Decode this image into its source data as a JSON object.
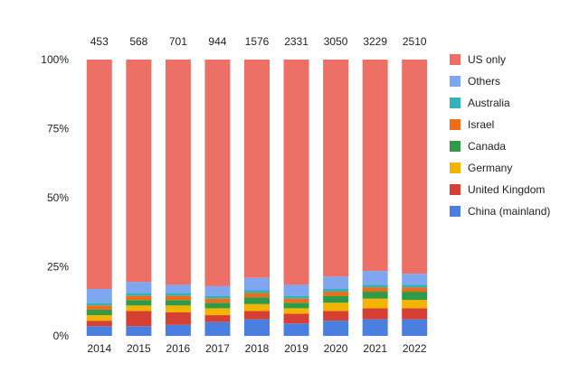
{
  "chart_data": {
    "type": "bar",
    "stacked": true,
    "normalized": true,
    "title": "",
    "xlabel": "",
    "ylabel": "",
    "ylim": [
      0,
      100
    ],
    "y_ticks": [
      "0%",
      "25%",
      "50%",
      "75%",
      "100%"
    ],
    "grid": false,
    "legend_position": "right",
    "categories": [
      "2014",
      "2015",
      "2016",
      "2017",
      "2018",
      "2019",
      "2020",
      "2021",
      "2022"
    ],
    "totals": [
      "453",
      "568",
      "701",
      "944",
      "1576",
      "2331",
      "3050",
      "3229",
      "2510"
    ],
    "series": [
      {
        "name": "China (mainland)",
        "color": "#4a7fe0",
        "values": [
          3.5,
          3.5,
          4.0,
          5.0,
          6.0,
          4.5,
          5.5,
          6.0,
          6.0
        ]
      },
      {
        "name": "United Kingdom",
        "color": "#d63f33",
        "values": [
          2.0,
          5.5,
          4.5,
          2.5,
          3.0,
          3.5,
          3.5,
          4.0,
          4.0
        ]
      },
      {
        "name": "Germany",
        "color": "#f3b400",
        "values": [
          2.0,
          2.0,
          2.5,
          2.5,
          2.5,
          2.0,
          3.0,
          3.5,
          3.0
        ]
      },
      {
        "name": "Canada",
        "color": "#2f9a47",
        "values": [
          2.0,
          2.0,
          2.0,
          2.0,
          2.5,
          2.0,
          2.5,
          2.5,
          3.0
        ]
      },
      {
        "name": "Israel",
        "color": "#f26b17",
        "values": [
          1.5,
          1.5,
          1.5,
          1.5,
          1.5,
          1.5,
          1.5,
          1.5,
          1.5
        ]
      },
      {
        "name": "Australia",
        "color": "#33b3b8",
        "values": [
          1.0,
          1.0,
          1.0,
          1.0,
          1.0,
          1.0,
          1.0,
          1.0,
          1.0
        ]
      },
      {
        "name": "Others",
        "color": "#7ea7ef",
        "values": [
          5.0,
          4.0,
          3.0,
          3.5,
          4.5,
          4.0,
          4.5,
          5.0,
          4.0
        ]
      },
      {
        "name": "US only",
        "color": "#ec7066",
        "values": [
          83.0,
          80.5,
          81.5,
          82.0,
          79.0,
          81.5,
          78.5,
          76.5,
          77.5
        ]
      }
    ],
    "legend_order": [
      "US only",
      "Others",
      "Australia",
      "Israel",
      "Canada",
      "Germany",
      "United Kingdom",
      "China (mainland)"
    ]
  }
}
